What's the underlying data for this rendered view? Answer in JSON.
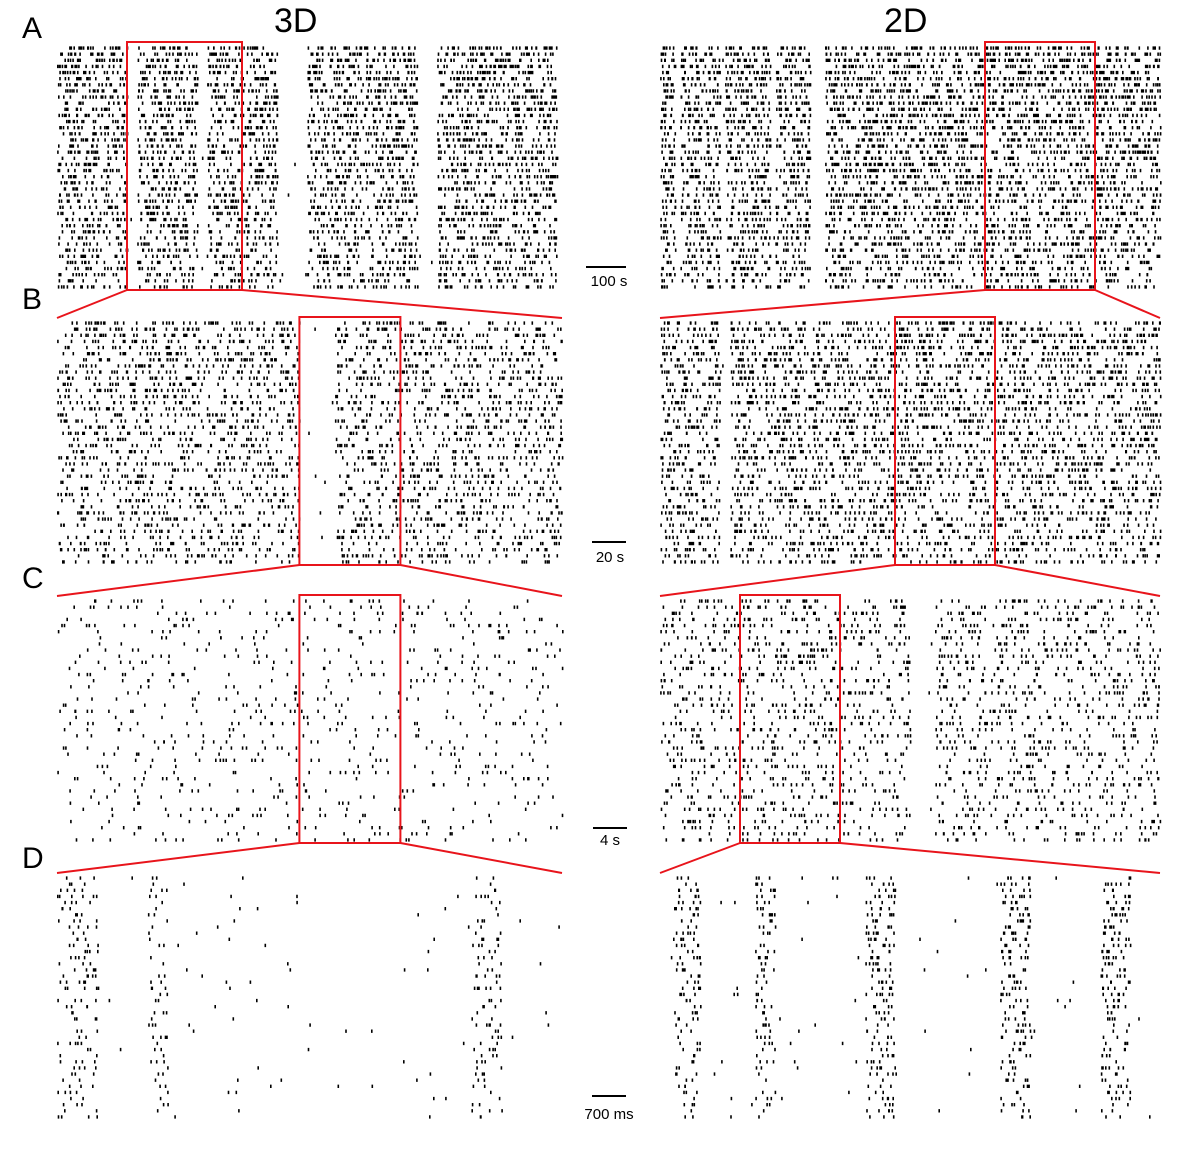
{
  "chart_data": {
    "type": "scatter",
    "subtype": "spike raster (zoom cascade)",
    "columns": [
      "3D",
      "2D"
    ],
    "panel_letters": [
      "A",
      "B",
      "C",
      "D"
    ],
    "scale_bars": [
      "100 s",
      "20 s",
      "4 s",
      "700 ms"
    ],
    "highlight_color": "#e8141b",
    "dot_color": "#000000",
    "panels": {
      "3D": [
        {
          "id": "A",
          "bursts": [
            [
              0.0,
              0.14
            ],
            [
              0.16,
              0.28
            ],
            [
              0.3,
              0.44
            ],
            [
              0.5,
              0.72
            ],
            [
              0.76,
              1.0
            ]
          ],
          "density": 0.95,
          "zoom": [
            0.14,
            0.37
          ]
        },
        {
          "id": "B",
          "bursts": [
            [
              0.0,
              0.38
            ],
            [
              0.38,
              0.48
            ],
            [
              0.55,
              1.0
            ]
          ],
          "density": 0.75,
          "zoom": [
            0.48,
            0.68
          ]
        },
        {
          "id": "C",
          "bursts": [
            [
              0.0,
              0.48
            ],
            [
              0.48,
              1.0
            ]
          ],
          "density": 0.35,
          "zoom": [
            0.48,
            0.68
          ]
        },
        {
          "id": "D",
          "bursts": [
            [
              0.0,
              0.08
            ],
            [
              0.18,
              0.22
            ],
            [
              0.82,
              0.88
            ]
          ],
          "density": 0.55
        }
      ],
      "2D": [
        {
          "id": "A",
          "bursts": [
            [
              0.0,
              0.03
            ],
            [
              0.04,
              0.12
            ],
            [
              0.13,
              0.22
            ],
            [
              0.23,
              0.3
            ],
            [
              0.33,
              1.0
            ]
          ],
          "density": 0.98,
          "zoom": [
            0.65,
            0.87
          ]
        },
        {
          "id": "B",
          "bursts": [
            [
              0.0,
              0.12
            ],
            [
              0.14,
              1.0
            ]
          ],
          "density": 0.85,
          "zoom": [
            0.47,
            0.67
          ]
        },
        {
          "id": "C",
          "bursts": [
            [
              0.0,
              0.5
            ],
            [
              0.55,
              1.0
            ]
          ],
          "density": 0.6,
          "zoom": [
            0.16,
            0.36
          ]
        },
        {
          "id": "D",
          "bursts": [
            [
              0.03,
              0.08
            ],
            [
              0.19,
              0.23
            ],
            [
              0.41,
              0.47
            ],
            [
              0.68,
              0.74
            ],
            [
              0.88,
              0.94
            ]
          ],
          "density": 0.7
        }
      ]
    }
  }
}
